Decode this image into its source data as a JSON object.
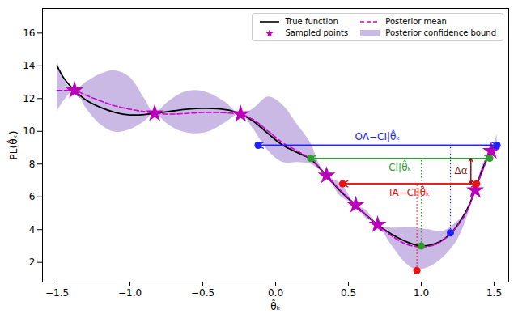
{
  "chart_data": {
    "type": "line",
    "xlabel": "θ̂ₖ",
    "ylabel": "PL(θ̂ₖ)",
    "xlim": [
      -1.6,
      1.6
    ],
    "ylim": [
      0.8,
      17.5
    ],
    "xticks": [
      {
        "value": -1.5,
        "label": "−1.5"
      },
      {
        "value": -1.0,
        "label": "−1.0"
      },
      {
        "value": -0.5,
        "label": "−0.5"
      },
      {
        "value": 0.0,
        "label": "0.0"
      },
      0.5,
      {
        "value": 1.0,
        "label": "1.0"
      },
      1.5
    ],
    "yticks": [
      2,
      4,
      6,
      8,
      10,
      12,
      14,
      16
    ],
    "grid": false,
    "legend": "upper right",
    "series": [
      {
        "name": "True function",
        "type": "line",
        "color": "#000000",
        "line_style": "solid",
        "x": [
          -1.5,
          -1.45,
          -1.38,
          -1.3,
          -1.2,
          -1.1,
          -1.0,
          -0.9,
          -0.83,
          -0.7,
          -0.6,
          -0.5,
          -0.4,
          -0.3,
          -0.24,
          -0.15,
          -0.05,
          0.05,
          0.15,
          0.24,
          0.35,
          0.45,
          0.55,
          0.62,
          0.7,
          0.8,
          0.9,
          1.0,
          1.1,
          1.2,
          1.3,
          1.37,
          1.42,
          1.48,
          1.52
        ],
        "values": [
          14.0,
          13.2,
          12.5,
          11.9,
          11.45,
          11.15,
          11.0,
          11.02,
          11.1,
          11.25,
          11.35,
          11.4,
          11.38,
          11.25,
          11.05,
          10.6,
          9.85,
          9.15,
          8.7,
          8.3,
          7.3,
          6.3,
          5.5,
          4.9,
          4.3,
          3.7,
          3.25,
          3.0,
          3.15,
          3.75,
          5.0,
          6.4,
          7.7,
          8.8,
          9.2
        ]
      },
      {
        "name": "Posterior mean",
        "type": "line",
        "color": "#cc00cc",
        "line_style": "dashed",
        "x": [
          -1.5,
          -1.45,
          -1.38,
          -1.3,
          -1.2,
          -1.1,
          -1.0,
          -0.9,
          -0.83,
          -0.7,
          -0.6,
          -0.5,
          -0.4,
          -0.3,
          -0.24,
          -0.15,
          -0.05,
          0.05,
          0.15,
          0.24,
          0.35,
          0.45,
          0.55,
          0.62,
          0.7,
          0.8,
          0.9,
          1.0,
          1.1,
          1.2,
          1.3,
          1.37,
          1.42,
          1.48,
          1.52
        ],
        "values": [
          12.5,
          12.5,
          12.5,
          12.2,
          11.85,
          11.55,
          11.35,
          11.2,
          11.1,
          11.05,
          11.1,
          11.15,
          11.15,
          11.1,
          11.05,
          10.7,
          10.0,
          9.3,
          8.8,
          8.3,
          7.3,
          6.35,
          5.5,
          4.9,
          4.3,
          3.6,
          3.1,
          2.95,
          3.1,
          3.75,
          4.9,
          6.4,
          7.6,
          8.8,
          9.4
        ]
      },
      {
        "name": "Sampled points",
        "type": "scatter",
        "color": "#bb00bb",
        "marker": "star",
        "x": [
          -1.38,
          -0.83,
          -0.24,
          0.35,
          0.55,
          0.7,
          1.37,
          1.48
        ],
        "values": [
          12.5,
          11.1,
          11.05,
          7.3,
          5.5,
          4.3,
          6.4,
          8.8
        ]
      },
      {
        "name": "Posterior confidence bound",
        "type": "area",
        "color": "#a98bd4",
        "x": [
          -1.5,
          -1.45,
          -1.38,
          -1.3,
          -1.2,
          -1.1,
          -1.0,
          -0.9,
          -0.83,
          -0.75,
          -0.65,
          -0.55,
          -0.45,
          -0.35,
          -0.24,
          -0.15,
          -0.05,
          0.05,
          0.15,
          0.24,
          0.3,
          0.35,
          0.45,
          0.55,
          0.62,
          0.7,
          0.8,
          0.9,
          0.97,
          1.05,
          1.15,
          1.25,
          1.32,
          1.37,
          1.42,
          1.48,
          1.52
        ],
        "lower": [
          11.2,
          11.9,
          12.5,
          11.4,
          10.4,
          9.95,
          10.1,
          10.6,
          11.1,
          10.5,
          10.0,
          9.85,
          10.0,
          10.5,
          11.05,
          10.1,
          8.8,
          8.1,
          8.1,
          8.0,
          7.65,
          7.3,
          6.0,
          5.5,
          4.7,
          4.3,
          3.0,
          1.9,
          1.55,
          1.7,
          2.3,
          3.4,
          4.9,
          6.4,
          7.3,
          8.8,
          9.0
        ],
        "upper": [
          14.4,
          13.1,
          12.5,
          13.0,
          13.5,
          13.7,
          13.3,
          12.0,
          11.1,
          11.7,
          12.3,
          12.5,
          12.3,
          11.8,
          11.05,
          11.4,
          12.1,
          11.6,
          10.4,
          9.3,
          8.0,
          7.3,
          6.8,
          5.5,
          5.2,
          4.3,
          4.1,
          4.15,
          4.1,
          4.0,
          3.9,
          4.5,
          5.2,
          6.4,
          7.9,
          8.8,
          9.8
        ]
      }
    ],
    "annotations": [
      {
        "label": "OA−CI|θ̂ₖ",
        "color": "#1f1fff",
        "x": [
          -0.12,
          1.52
        ],
        "y": 9.15,
        "point": [
          1.2,
          3.8
        ]
      },
      {
        "label": "CI|θ̂ₖ",
        "color": "#2ca02c",
        "x": [
          0.24,
          1.47
        ],
        "y": 8.35,
        "point": [
          1.0,
          3.0
        ]
      },
      {
        "label": "IA−CI|θ̂ₖ",
        "color": "#ee1111",
        "x": [
          0.46,
          1.38
        ],
        "y": 6.8,
        "point": [
          0.97,
          1.5
        ]
      }
    ],
    "delta": {
      "label": "Δα",
      "color": "#8b1a1a",
      "x": 1.34,
      "y": [
        6.8,
        8.35
      ]
    }
  }
}
